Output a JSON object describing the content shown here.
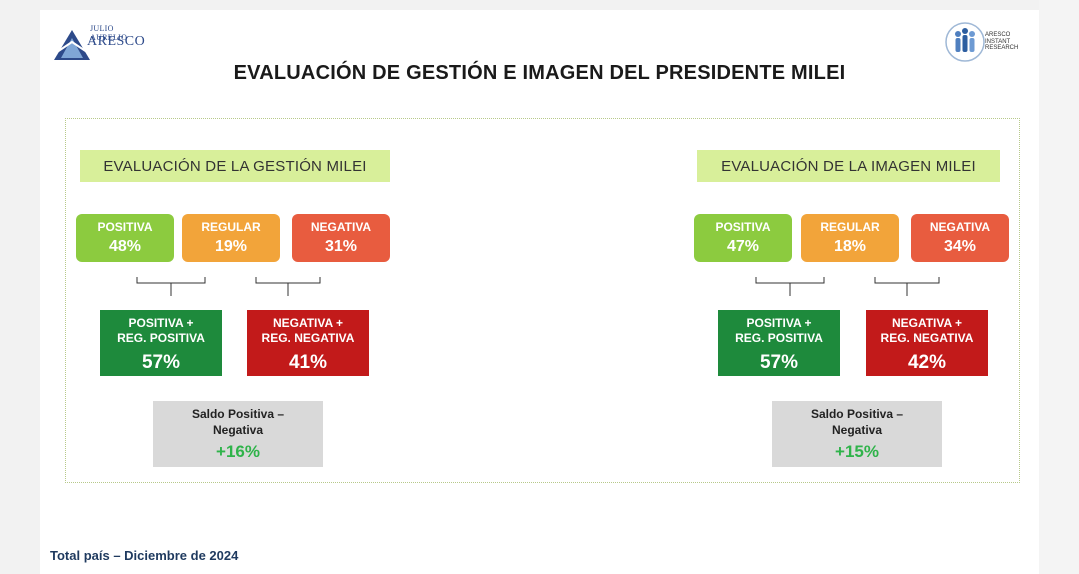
{
  "header": {
    "logo_left_small": "JULIO AURELIO",
    "logo_left_big": "ARESCO",
    "logo_right_lines": [
      "ARESCO",
      "INSTANT",
      "RESEARCH"
    ],
    "title": "EVALUACIÓN DE GESTIÓN E IMAGEN DEL PRESIDENTE MILEI"
  },
  "colors": {
    "positiva": "#8ccb3f",
    "regular": "#f2a43a",
    "negativa": "#e85c3f",
    "pos_sum": "#1e8a3c",
    "neg_sum": "#c21a1a",
    "section_bg": "#d8ef9a",
    "saldo_value": "#2fb34a"
  },
  "gestion": {
    "title": "EVALUACIÓN DE LA GESTIÓN MILEI",
    "positiva": {
      "label": "POSITIVA",
      "value": "48%"
    },
    "regular": {
      "label": "REGULAR",
      "value": "19%"
    },
    "negativa": {
      "label": "NEGATIVA",
      "value": "31%"
    },
    "pos_sum": {
      "label1": "POSITIVA +",
      "label2": "REG. POSITIVA",
      "value": "57%"
    },
    "neg_sum": {
      "label1": "NEGATIVA +",
      "label2": "REG. NEGATIVA",
      "value": "41%"
    },
    "saldo": {
      "label1": "Saldo Positiva –",
      "label2": "Negativa",
      "value": "+16%"
    }
  },
  "imagen": {
    "title": "EVALUACIÓN DE LA IMAGEN MILEI",
    "positiva": {
      "label": "POSITIVA",
      "value": "47%"
    },
    "regular": {
      "label": "REGULAR",
      "value": "18%"
    },
    "negativa": {
      "label": "NEGATIVA",
      "value": "34%"
    },
    "pos_sum": {
      "label1": "POSITIVA +",
      "label2": "REG. POSITIVA",
      "value": "57%"
    },
    "neg_sum": {
      "label1": "NEGATIVA +",
      "label2": "REG. NEGATIVA",
      "value": "42%"
    },
    "saldo": {
      "label1": "Saldo Positiva –",
      "label2": "Negativa",
      "value": "+15%"
    }
  },
  "footer": "Total país – Diciembre de 2024"
}
